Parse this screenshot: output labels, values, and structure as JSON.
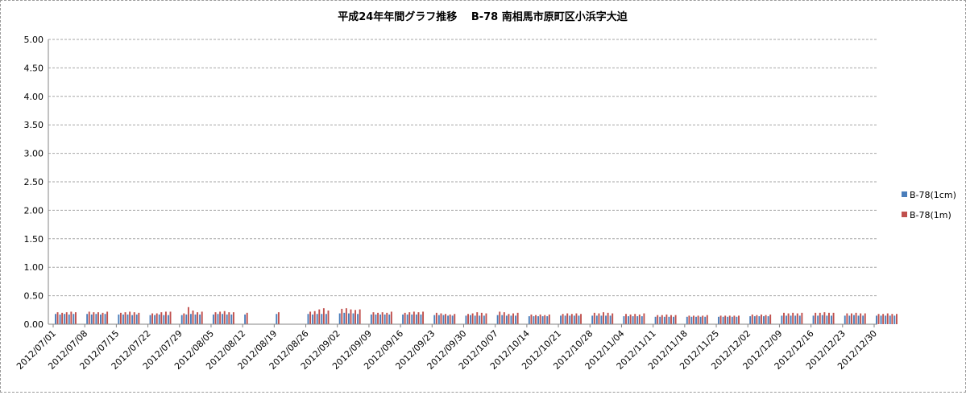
{
  "chart_data": {
    "type": "bar",
    "title": "平成24年年間グラフ推移　 B-78 南相馬市原町区小浜字大迫",
    "xlabel": "",
    "ylabel": "",
    "ylim": [
      0,
      5
    ],
    "yticks": [
      "5.00",
      "4.50",
      "4.00",
      "3.50",
      "3.00",
      "2.50",
      "2.00",
      "1.50",
      "1.00",
      "0.50",
      "0.00"
    ],
    "grid": "horizontal-dashed",
    "legend_position": "right",
    "x_tick_labels": [
      "2012/07/01",
      "2012/07/08",
      "2012/07/15",
      "2012/07/22",
      "2012/07/29",
      "2012/08/05",
      "2012/08/12",
      "2012/08/19",
      "2012/08/26",
      "2012/09/02",
      "2012/09/09",
      "2012/09/16",
      "2012/09/23",
      "2012/09/30",
      "2012/10/07",
      "2012/10/14",
      "2012/10/21",
      "2012/10/28",
      "2012/11/04",
      "2012/11/11",
      "2012/11/18",
      "2012/11/25",
      "2012/12/02",
      "2012/12/09",
      "2012/12/16",
      "2012/12/23",
      "2012/12/30"
    ],
    "series": [
      {
        "name": "B-78(1cm)",
        "color": "#4a7ebb",
        "weekly_values": [
          [
            0.18,
            0.17,
            0.18,
            0.17,
            0.18
          ],
          [
            0.18,
            0.17,
            0.18,
            0.17,
            0.18
          ],
          [
            0.17,
            0.17,
            0.17,
            0.16,
            0.17
          ],
          [
            0.16,
            0.16,
            0.17,
            0.16,
            0.16
          ],
          [
            0.16,
            0.17,
            0.18,
            0.17,
            0.17
          ],
          [
            0.17,
            0.18,
            0.18,
            0.17,
            0.17
          ],
          [
            0.17,
            null,
            null,
            null,
            null
          ],
          [
            0.18,
            null,
            null,
            null,
            null
          ],
          [
            0.18,
            0.17,
            0.18,
            0.18,
            0.18
          ],
          [
            0.19,
            0.2,
            0.19,
            0.19,
            0.18
          ],
          [
            0.17,
            0.17,
            0.17,
            0.17,
            0.17
          ],
          [
            0.17,
            0.17,
            0.17,
            0.17,
            0.17
          ],
          [
            0.16,
            0.16,
            0.16,
            0.15,
            0.15
          ],
          [
            0.15,
            0.16,
            0.15,
            0.15,
            0.15
          ],
          [
            0.16,
            0.16,
            0.15,
            0.15,
            0.15
          ],
          [
            0.14,
            0.14,
            0.14,
            0.14,
            0.14
          ],
          [
            0.15,
            0.15,
            0.15,
            0.15,
            0.15
          ],
          [
            0.15,
            0.15,
            0.15,
            0.15,
            0.15
          ],
          [
            0.14,
            0.14,
            0.14,
            0.14,
            0.14
          ],
          [
            0.13,
            0.13,
            0.13,
            0.13,
            0.13
          ],
          [
            0.13,
            0.13,
            0.13,
            0.13,
            0.13
          ],
          [
            0.13,
            0.13,
            0.13,
            0.13,
            0.13
          ],
          [
            0.14,
            0.14,
            0.14,
            0.14,
            0.14
          ],
          [
            0.15,
            0.15,
            0.15,
            0.15,
            0.15
          ],
          [
            0.15,
            0.15,
            0.16,
            0.15,
            0.15
          ],
          [
            0.15,
            0.15,
            0.16,
            0.15,
            0.15
          ],
          [
            0.15,
            0.15,
            0.15,
            0.15,
            0.15
          ]
        ]
      },
      {
        "name": "B-78(1m)",
        "color": "#c0504d",
        "weekly_values": [
          [
            0.21,
            0.2,
            0.21,
            0.22,
            0.21
          ],
          [
            0.22,
            0.21,
            0.21,
            0.2,
            0.22
          ],
          [
            0.2,
            0.21,
            0.22,
            0.21,
            0.2
          ],
          [
            0.19,
            0.19,
            0.21,
            0.22,
            0.22
          ],
          [
            0.19,
            0.3,
            0.24,
            0.21,
            0.22
          ],
          [
            0.21,
            0.22,
            0.23,
            0.21,
            0.21
          ],
          [
            0.2,
            null,
            null,
            null,
            null
          ],
          [
            0.21,
            null,
            null,
            null,
            null
          ],
          [
            0.22,
            0.23,
            0.26,
            0.28,
            0.24
          ],
          [
            0.27,
            0.28,
            0.26,
            0.25,
            0.26
          ],
          [
            0.21,
            0.2,
            0.21,
            0.2,
            0.22
          ],
          [
            0.2,
            0.21,
            0.22,
            0.21,
            0.22
          ],
          [
            0.2,
            0.19,
            0.18,
            0.17,
            0.18
          ],
          [
            0.18,
            0.19,
            0.21,
            0.2,
            0.19
          ],
          [
            0.22,
            0.21,
            0.18,
            0.19,
            0.2
          ],
          [
            0.17,
            0.16,
            0.17,
            0.16,
            0.17
          ],
          [
            0.18,
            0.19,
            0.18,
            0.19,
            0.18
          ],
          [
            0.2,
            0.19,
            0.21,
            0.2,
            0.19
          ],
          [
            0.18,
            0.17,
            0.18,
            0.17,
            0.19
          ],
          [
            0.16,
            0.16,
            0.17,
            0.16,
            0.16
          ],
          [
            0.15,
            0.15,
            0.15,
            0.15,
            0.16
          ],
          [
            0.15,
            0.15,
            0.15,
            0.15,
            0.15
          ],
          [
            0.17,
            0.16,
            0.17,
            0.16,
            0.17
          ],
          [
            0.2,
            0.19,
            0.2,
            0.19,
            0.2
          ],
          [
            0.2,
            0.2,
            0.21,
            0.2,
            0.2
          ],
          [
            0.19,
            0.19,
            0.2,
            0.19,
            0.19
          ],
          [
            0.18,
            0.18,
            0.19,
            0.18,
            0.18
          ]
        ]
      }
    ]
  }
}
